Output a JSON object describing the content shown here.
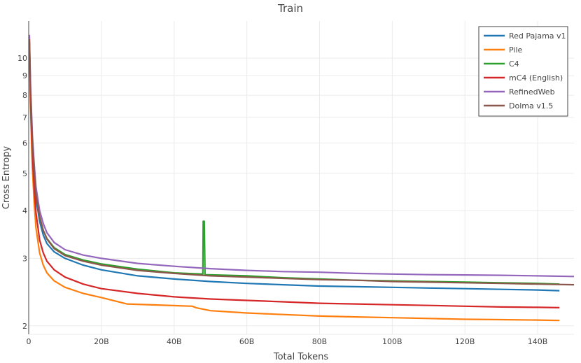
{
  "chart_data": {
    "type": "line",
    "title": "Train",
    "xlabel": "Total Tokens",
    "ylabel": "Cross Entropy",
    "xlim": [
      0,
      150
    ],
    "ylim": [
      1.9,
      12.5
    ],
    "y_scale": "log",
    "grid": true,
    "legend_position": "top-right",
    "x_ticks": [
      {
        "value": 0,
        "label": "0"
      },
      {
        "value": 20,
        "label": "20B"
      },
      {
        "value": 40,
        "label": "40B"
      },
      {
        "value": 60,
        "label": "60B"
      },
      {
        "value": 80,
        "label": "80B"
      },
      {
        "value": 100,
        "label": "100B"
      },
      {
        "value": 120,
        "label": "120B"
      },
      {
        "value": 140,
        "label": "140B"
      }
    ],
    "y_ticks": [
      {
        "value": 2,
        "label": "2"
      },
      {
        "value": 3,
        "label": "3"
      },
      {
        "value": 4,
        "label": "4"
      },
      {
        "value": 5,
        "label": "5"
      },
      {
        "value": 6,
        "label": "6"
      },
      {
        "value": 7,
        "label": "7"
      },
      {
        "value": 8,
        "label": "8"
      },
      {
        "value": 9,
        "label": "9"
      },
      {
        "value": 10,
        "label": "10"
      }
    ],
    "series": [
      {
        "name": "Red Pajama v1",
        "color": "#1f77b4",
        "x": [
          0.2,
          0.5,
          1,
          1.5,
          2,
          3,
          4,
          5,
          7,
          10,
          15,
          20,
          30,
          40,
          50,
          60,
          70,
          80,
          90,
          100,
          110,
          120,
          130,
          140,
          146
        ],
        "y": [
          11.0,
          8.0,
          6.0,
          5.0,
          4.3,
          3.75,
          3.45,
          3.28,
          3.12,
          3.0,
          2.88,
          2.8,
          2.7,
          2.65,
          2.61,
          2.58,
          2.56,
          2.54,
          2.53,
          2.52,
          2.51,
          2.5,
          2.49,
          2.48,
          2.47
        ]
      },
      {
        "name": "Pile",
        "color": "#ff7f0e",
        "x": [
          0.2,
          0.5,
          1,
          1.5,
          2,
          3,
          4,
          5,
          7,
          10,
          15,
          20,
          27,
          45,
          46,
          50,
          60,
          70,
          80,
          90,
          100,
          110,
          120,
          130,
          140,
          146
        ],
        "y": [
          11.0,
          7.5,
          5.2,
          4.2,
          3.6,
          3.1,
          2.88,
          2.75,
          2.62,
          2.52,
          2.43,
          2.37,
          2.28,
          2.25,
          2.23,
          2.19,
          2.16,
          2.14,
          2.12,
          2.11,
          2.1,
          2.09,
          2.08,
          2.075,
          2.07,
          2.065
        ]
      },
      {
        "name": "C4",
        "color": "#2ca02c",
        "x": [
          0.2,
          0.5,
          1,
          1.5,
          2,
          3,
          4,
          5,
          7,
          10,
          15,
          20,
          30,
          40,
          47.9,
          48,
          48.3,
          48.5,
          60,
          70,
          80,
          90,
          100,
          110,
          120,
          130,
          140,
          146
        ],
        "y": [
          11.0,
          8.0,
          6.1,
          5.1,
          4.4,
          3.85,
          3.55,
          3.38,
          3.2,
          3.07,
          2.97,
          2.9,
          2.81,
          2.75,
          2.73,
          3.75,
          3.75,
          2.72,
          2.7,
          2.67,
          2.65,
          2.63,
          2.62,
          2.61,
          2.6,
          2.59,
          2.58,
          2.57
        ]
      },
      {
        "name": "mC4 (English)",
        "color": "#d62728",
        "x": [
          0.2,
          0.5,
          1,
          1.5,
          2,
          3,
          4,
          5,
          7,
          10,
          15,
          20,
          30,
          40,
          50,
          60,
          70,
          80,
          90,
          100,
          110,
          120,
          130,
          140,
          146
        ],
        "y": [
          11.0,
          7.8,
          5.6,
          4.6,
          3.95,
          3.35,
          3.1,
          2.95,
          2.8,
          2.68,
          2.57,
          2.5,
          2.43,
          2.38,
          2.35,
          2.33,
          2.31,
          2.29,
          2.28,
          2.27,
          2.26,
          2.25,
          2.24,
          2.235,
          2.23
        ]
      },
      {
        "name": "RefinedWeb",
        "color": "#9467bd",
        "x": [
          0.2,
          0.5,
          1,
          1.5,
          2,
          3,
          4,
          5,
          7,
          10,
          15,
          20,
          30,
          40,
          50,
          60,
          70,
          80,
          90,
          100,
          110,
          120,
          130,
          140,
          150
        ],
        "y": [
          11.5,
          8.5,
          6.3,
          5.3,
          4.6,
          4.0,
          3.7,
          3.5,
          3.3,
          3.16,
          3.06,
          3.0,
          2.91,
          2.86,
          2.82,
          2.79,
          2.77,
          2.76,
          2.74,
          2.73,
          2.72,
          2.715,
          2.71,
          2.7,
          2.69
        ]
      },
      {
        "name": "Dolma v1.5",
        "color": "#8c564b",
        "x": [
          0.2,
          0.5,
          1,
          1.5,
          2,
          3,
          4,
          5,
          7,
          10,
          15,
          20,
          30,
          40,
          50,
          60,
          70,
          80,
          90,
          100,
          110,
          120,
          130,
          140,
          150
        ],
        "y": [
          11.2,
          8.2,
          6.1,
          5.1,
          4.4,
          3.85,
          3.55,
          3.37,
          3.18,
          3.05,
          2.95,
          2.88,
          2.79,
          2.74,
          2.7,
          2.68,
          2.66,
          2.64,
          2.63,
          2.61,
          2.6,
          2.59,
          2.58,
          2.57,
          2.56
        ]
      }
    ]
  }
}
